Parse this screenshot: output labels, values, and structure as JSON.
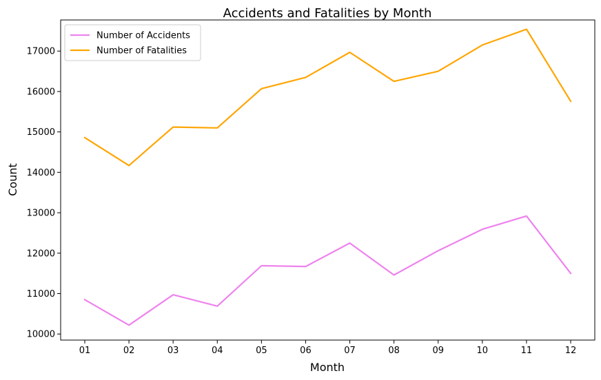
{
  "chart_data": {
    "type": "line",
    "title": "Accidents and Fatalities by Month",
    "xlabel": "Month",
    "ylabel": "Count",
    "categories": [
      "01",
      "02",
      "03",
      "04",
      "05",
      "06",
      "07",
      "08",
      "09",
      "10",
      "11",
      "12"
    ],
    "yticks": [
      10000,
      11000,
      12000,
      13000,
      14000,
      15000,
      16000,
      17000
    ],
    "ylim": [
      9850,
      17770
    ],
    "grid": false,
    "legend_position": "top-left",
    "series": [
      {
        "name": "Number of Accidents",
        "color": "#ee82ee",
        "values": [
          10850,
          10220,
          10970,
          10690,
          11690,
          11670,
          12250,
          11460,
          12060,
          12590,
          12920,
          11500
        ]
      },
      {
        "name": "Number of Fatalities",
        "color": "#ffa500",
        "values": [
          14860,
          14170,
          15120,
          15100,
          16070,
          16350,
          16970,
          16250,
          16500,
          17150,
          17540,
          15760
        ]
      }
    ]
  }
}
